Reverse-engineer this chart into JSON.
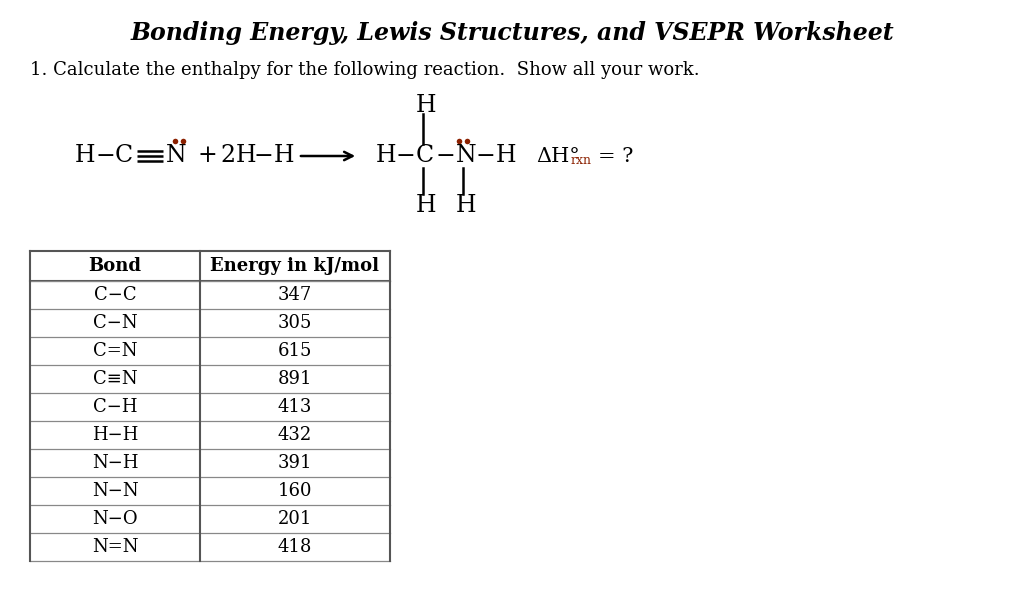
{
  "title": "Bonding Energy, Lewis Structures, and VSEPR Worksheet",
  "background_color": "#ffffff",
  "question_text": "1. Calculate the enthalpy for the following reaction.  Show all your work.",
  "table_bonds": [
    "C−C",
    "C−N",
    "C=N",
    "C≡N",
    "C−H",
    "H−H",
    "N−H",
    "N−N",
    "N−O",
    "N=N"
  ],
  "table_energies": [
    "347",
    "305",
    "615",
    "891",
    "413",
    "432",
    "391",
    "160",
    "201",
    "418"
  ],
  "table_header_bond": "Bond",
  "table_header_energy": "Energy in kJ/mol",
  "dot_color": "#8B2000"
}
